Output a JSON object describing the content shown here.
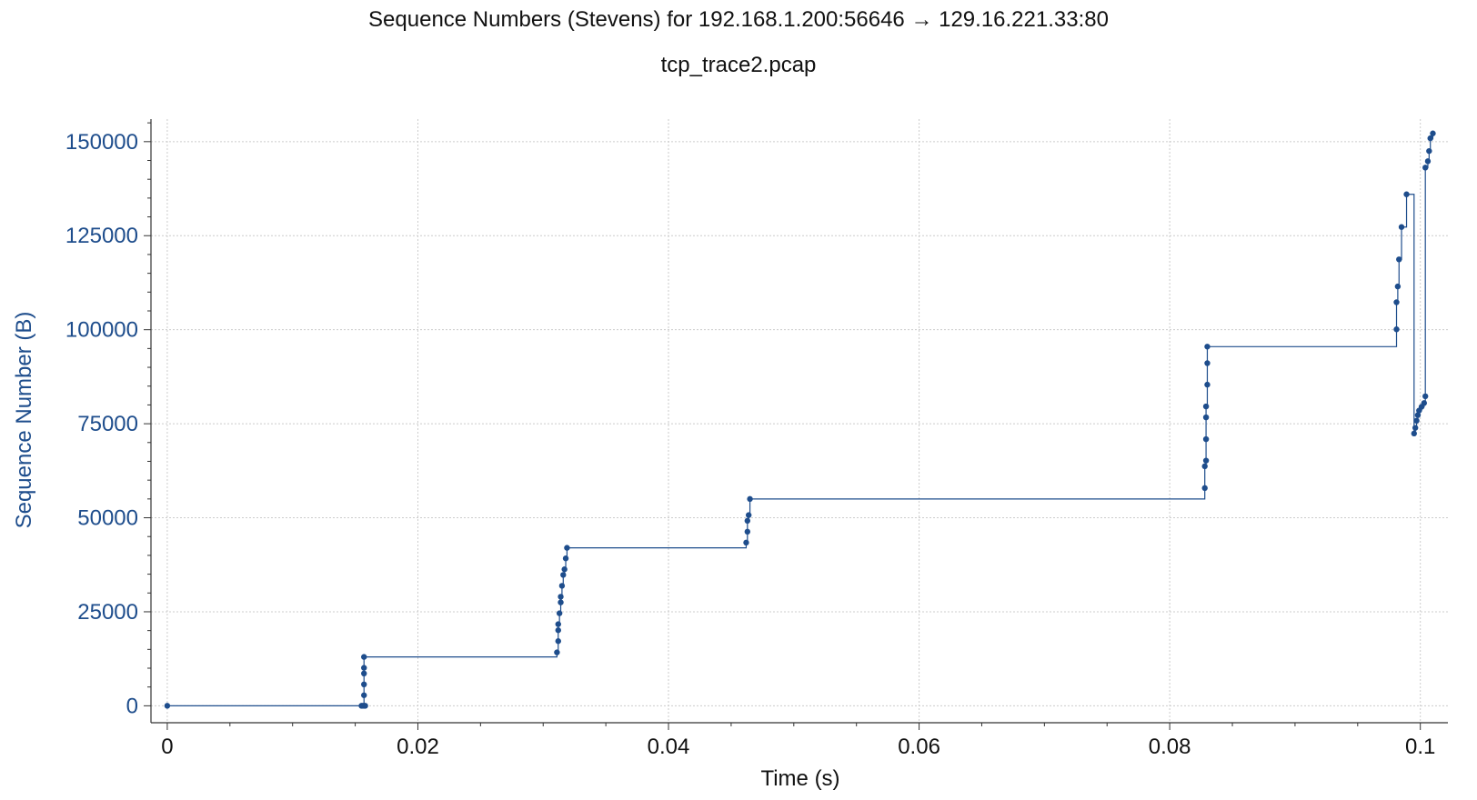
{
  "chart_data": {
    "type": "line",
    "title": "Sequence Numbers (Stevens) for 192.168.1.200:56646 → 129.16.221.33:80",
    "subtitle": "tcp_trace2.pcap",
    "xlabel": "Time (s)",
    "ylabel": "Sequence Number (B)",
    "xlim": [
      -0.0013,
      0.1022
    ],
    "ylim": [
      -4500,
      156000
    ],
    "xticks": [
      0,
      0.02,
      0.04,
      0.06,
      0.08,
      0.1
    ],
    "xtick_labels": [
      "0",
      "0.02",
      "0.04",
      "0.06",
      "0.08",
      "0.1"
    ],
    "yticks": [
      0,
      25000,
      50000,
      75000,
      100000,
      125000,
      150000
    ],
    "ytick_labels": [
      "0",
      "25000",
      "50000",
      "75000",
      "100000",
      "125000",
      "150000"
    ],
    "grid": true,
    "colors": {
      "series": "#1e4d8c",
      "grid": "#cccccc",
      "axis": "#333333"
    },
    "series": [
      {
        "style": "step",
        "points": [
          [
            0.0,
            0
          ],
          [
            0.0155,
            0
          ],
          [
            0.0156,
            0
          ],
          [
            0.0157,
            0
          ],
          [
            0.0158,
            0
          ],
          [
            0.0157,
            2800
          ],
          [
            0.0157,
            5700
          ],
          [
            0.0157,
            8600
          ],
          [
            0.0157,
            10100
          ],
          [
            0.0157,
            13000
          ],
          [
            0.0311,
            14200
          ],
          [
            0.0312,
            17200
          ],
          [
            0.0312,
            20100
          ],
          [
            0.0312,
            21700
          ],
          [
            0.0313,
            24600
          ],
          [
            0.0314,
            27500
          ],
          [
            0.0314,
            29000
          ],
          [
            0.0315,
            31900
          ],
          [
            0.0316,
            34800
          ],
          [
            0.0317,
            36300
          ],
          [
            0.0318,
            39200
          ],
          [
            0.0319,
            42000
          ],
          [
            0.0462,
            43400
          ],
          [
            0.0463,
            46300
          ],
          [
            0.0463,
            49200
          ],
          [
            0.0464,
            50700
          ],
          [
            0.0465,
            55000
          ],
          [
            0.0828,
            57900
          ],
          [
            0.0828,
            63700
          ],
          [
            0.0829,
            65200
          ],
          [
            0.0829,
            70900
          ],
          [
            0.0829,
            76700
          ],
          [
            0.0829,
            79600
          ],
          [
            0.083,
            85400
          ],
          [
            0.083,
            91100
          ],
          [
            0.083,
            95500
          ],
          [
            0.0981,
            100100
          ],
          [
            0.0981,
            107300
          ],
          [
            0.0982,
            111500
          ],
          [
            0.0983,
            118700
          ],
          [
            0.0985,
            127300
          ],
          [
            0.0989,
            136000
          ],
          [
            0.0995,
            72400
          ],
          [
            0.0996,
            73900
          ],
          [
            0.0997,
            75800
          ],
          [
            0.0998,
            77300
          ],
          [
            0.0999,
            78500
          ],
          [
            0.1001,
            79500
          ],
          [
            0.1003,
            80500
          ],
          [
            0.1004,
            82300
          ],
          [
            0.1004,
            143100
          ],
          [
            0.1006,
            144800
          ],
          [
            0.1007,
            147500
          ],
          [
            0.1008,
            150900
          ],
          [
            0.101,
            152200
          ]
        ]
      }
    ]
  }
}
